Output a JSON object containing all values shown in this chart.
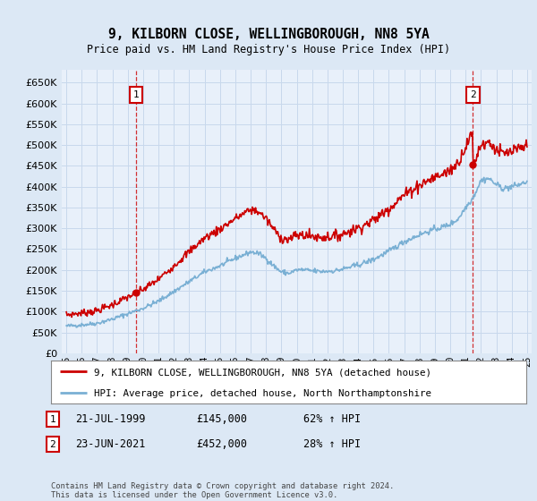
{
  "title": "9, KILBORN CLOSE, WELLINGBOROUGH, NN8 5YA",
  "subtitle": "Price paid vs. HM Land Registry's House Price Index (HPI)",
  "legend_line1": "9, KILBORN CLOSE, WELLINGBOROUGH, NN8 5YA (detached house)",
  "legend_line2": "HPI: Average price, detached house, North Northamptonshire",
  "annotation1_label": "1",
  "annotation1_date": "21-JUL-1999",
  "annotation1_price": "£145,000",
  "annotation1_hpi": "62% ↑ HPI",
  "annotation2_label": "2",
  "annotation2_date": "23-JUN-2021",
  "annotation2_price": "£452,000",
  "annotation2_hpi": "28% ↑ HPI",
  "footer": "Contains HM Land Registry data © Crown copyright and database right 2024.\nThis data is licensed under the Open Government Licence v3.0.",
  "red_color": "#cc0000",
  "blue_color": "#7ab0d4",
  "bg_color": "#dce8f5",
  "plot_bg": "#e8f0fa",
  "grid_color": "#c8d8ec",
  "annotation_box_color": "#cc0000",
  "sale1_year": 1999.55,
  "sale1_price": 145000,
  "sale2_year": 2021.48,
  "sale2_price": 452000,
  "ylim_min": 0,
  "ylim_max": 680000,
  "xlim_min": 1994.7,
  "xlim_max": 2025.3
}
